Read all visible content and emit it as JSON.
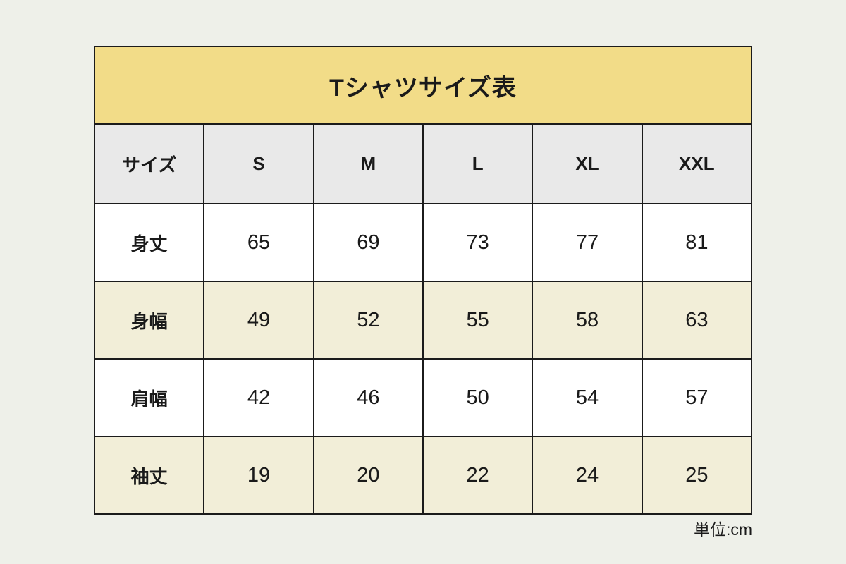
{
  "colors": {
    "page_bg": "#eef0e9",
    "title_bg": "#f2dc88",
    "header_bg": "#e9e9e9",
    "stripe_bg": "#f2eed8",
    "row_bg": "#ffffff",
    "border": "#1b1b1b",
    "text": "#1a1a1a"
  },
  "table": {
    "title": "Tシャツサイズ表",
    "header": {
      "label": "サイズ",
      "sizes": [
        "S",
        "M",
        "L",
        "XL",
        "XXL"
      ]
    },
    "rows": [
      {
        "label": "身丈",
        "values": [
          65,
          69,
          73,
          77,
          81
        ]
      },
      {
        "label": "身幅",
        "values": [
          49,
          52,
          55,
          58,
          63
        ]
      },
      {
        "label": "肩幅",
        "values": [
          42,
          46,
          50,
          54,
          57
        ]
      },
      {
        "label": "袖丈",
        "values": [
          19,
          20,
          22,
          24,
          25
        ]
      }
    ],
    "unit_note": "単位:cm"
  },
  "chart_data": {
    "type": "table",
    "title": "Tシャツサイズ表",
    "columns": [
      "サイズ",
      "S",
      "M",
      "L",
      "XL",
      "XXL"
    ],
    "rows": [
      [
        "身丈",
        65,
        69,
        73,
        77,
        81
      ],
      [
        "身幅",
        49,
        52,
        55,
        58,
        63
      ],
      [
        "肩幅",
        42,
        46,
        50,
        54,
        57
      ],
      [
        "袖丈",
        19,
        20,
        22,
        24,
        25
      ]
    ],
    "unit": "cm",
    "layout_hints": {
      "title_row_bg": "#f2dc88",
      "header_row_bg": "#e9e9e9",
      "zebra_stripe_bg": "#f2eed8",
      "grid": true
    }
  }
}
